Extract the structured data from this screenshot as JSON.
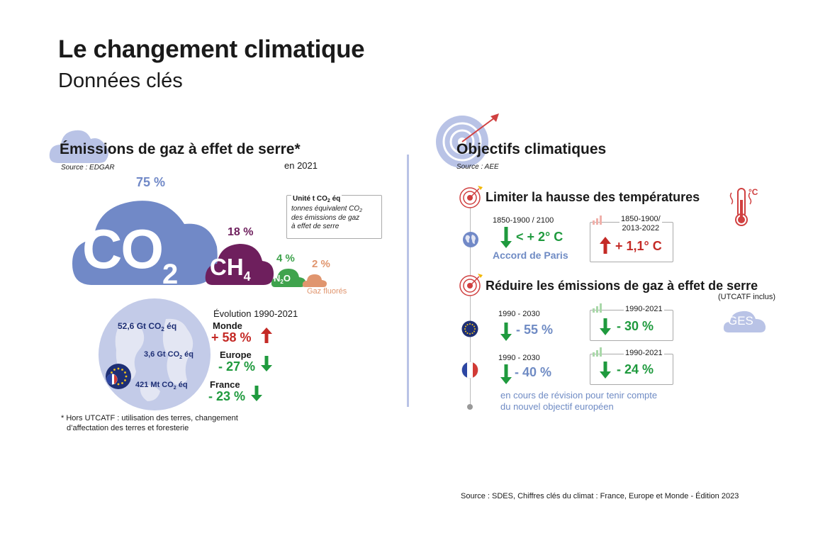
{
  "header": {
    "title": "Le changement climatique",
    "subtitle": "Données clés"
  },
  "left": {
    "title": "Émissions de gaz à effet de serre*",
    "source": "Source : EDGAR",
    "year": "en 2021",
    "gases": {
      "co2_pct": "75 %",
      "ch4_pct": "18 %",
      "n2o_pct": "4 %",
      "fluor_pct": "2 %",
      "fluor_label": "Gaz fluorés",
      "co2_main": "CO",
      "co2_sub": "2",
      "ch4_main": "CH",
      "ch4_sub": "4",
      "n2o_a": "N",
      "n2o_sub": "2",
      "n2o_b": "O"
    },
    "unit_box": {
      "title": "Unité t CO",
      "title_sub": "2",
      "title_end": " éq",
      "line1": "tonnes équivalent CO",
      "line1_sub": "2",
      "line2": "des émissions de gaz",
      "line3": "à effet de serre"
    },
    "evolution": {
      "heading": "Évolution 1990-2021",
      "rows": [
        {
          "amount": "52,6 Gt CO",
          "amount_sub": "2",
          "amount_end": " éq",
          "region": "Monde",
          "change": "+ 58 %",
          "direction": "up"
        },
        {
          "amount": "3,6 Gt CO",
          "amount_sub": "2",
          "amount_end": " éq",
          "region": "Europe",
          "change": "- 27 %",
          "direction": "down"
        },
        {
          "amount": "421 Mt CO",
          "amount_sub": "2",
          "amount_end": " éq",
          "region": "France",
          "change": "- 23 %",
          "direction": "down"
        }
      ]
    },
    "footnote_line1": "* Hors UTCATF : utilisation des terres, changement",
    "footnote_line2": "d’affectation des terres et foresterie"
  },
  "right": {
    "title": "Objectifs climatiques",
    "source": "Source : AEE",
    "temp": {
      "title": "Limiter la hausse des températures",
      "period_left": "1850-1900 / 2100",
      "value_left": "< + 2° C",
      "label_left": "Accord de Paris",
      "period_right_1": "1850-1900/",
      "period_right_2": "2013-2022",
      "value_right": "+ 1,1° C",
      "thermo_unit": "°C"
    },
    "ges": {
      "title": "Réduire les émissions de gaz à effet de serre",
      "note": "(UTCATF inclus)",
      "cloud_label": "GES",
      "eu_period": "1990 - 2030",
      "eu_target": "- 55 %",
      "eu_hist_period": "1990-2021",
      "eu_hist": "- 30 %",
      "fr_period": "1990 - 2030",
      "fr_target": "- 40 %",
      "fr_hist_period": "1990-2021",
      "fr_hist": "- 24 %",
      "revision_1": "en cours de révision pour tenir compte",
      "revision_2": "du nouvel objectif européen"
    }
  },
  "footer": {
    "source": "Source : SDES, Chiffres clés du climat : France, Europe et Monde - Édition 2023"
  },
  "colors": {
    "co2": "#7189c7",
    "ch4": "#6e1f5d",
    "n2o": "#3fa34d",
    "fluor": "#e0956e",
    "green": "#1f9a3e",
    "red": "#c42a26",
    "navy": "#1e2f75",
    "lightblue": "#b9c3e6"
  }
}
